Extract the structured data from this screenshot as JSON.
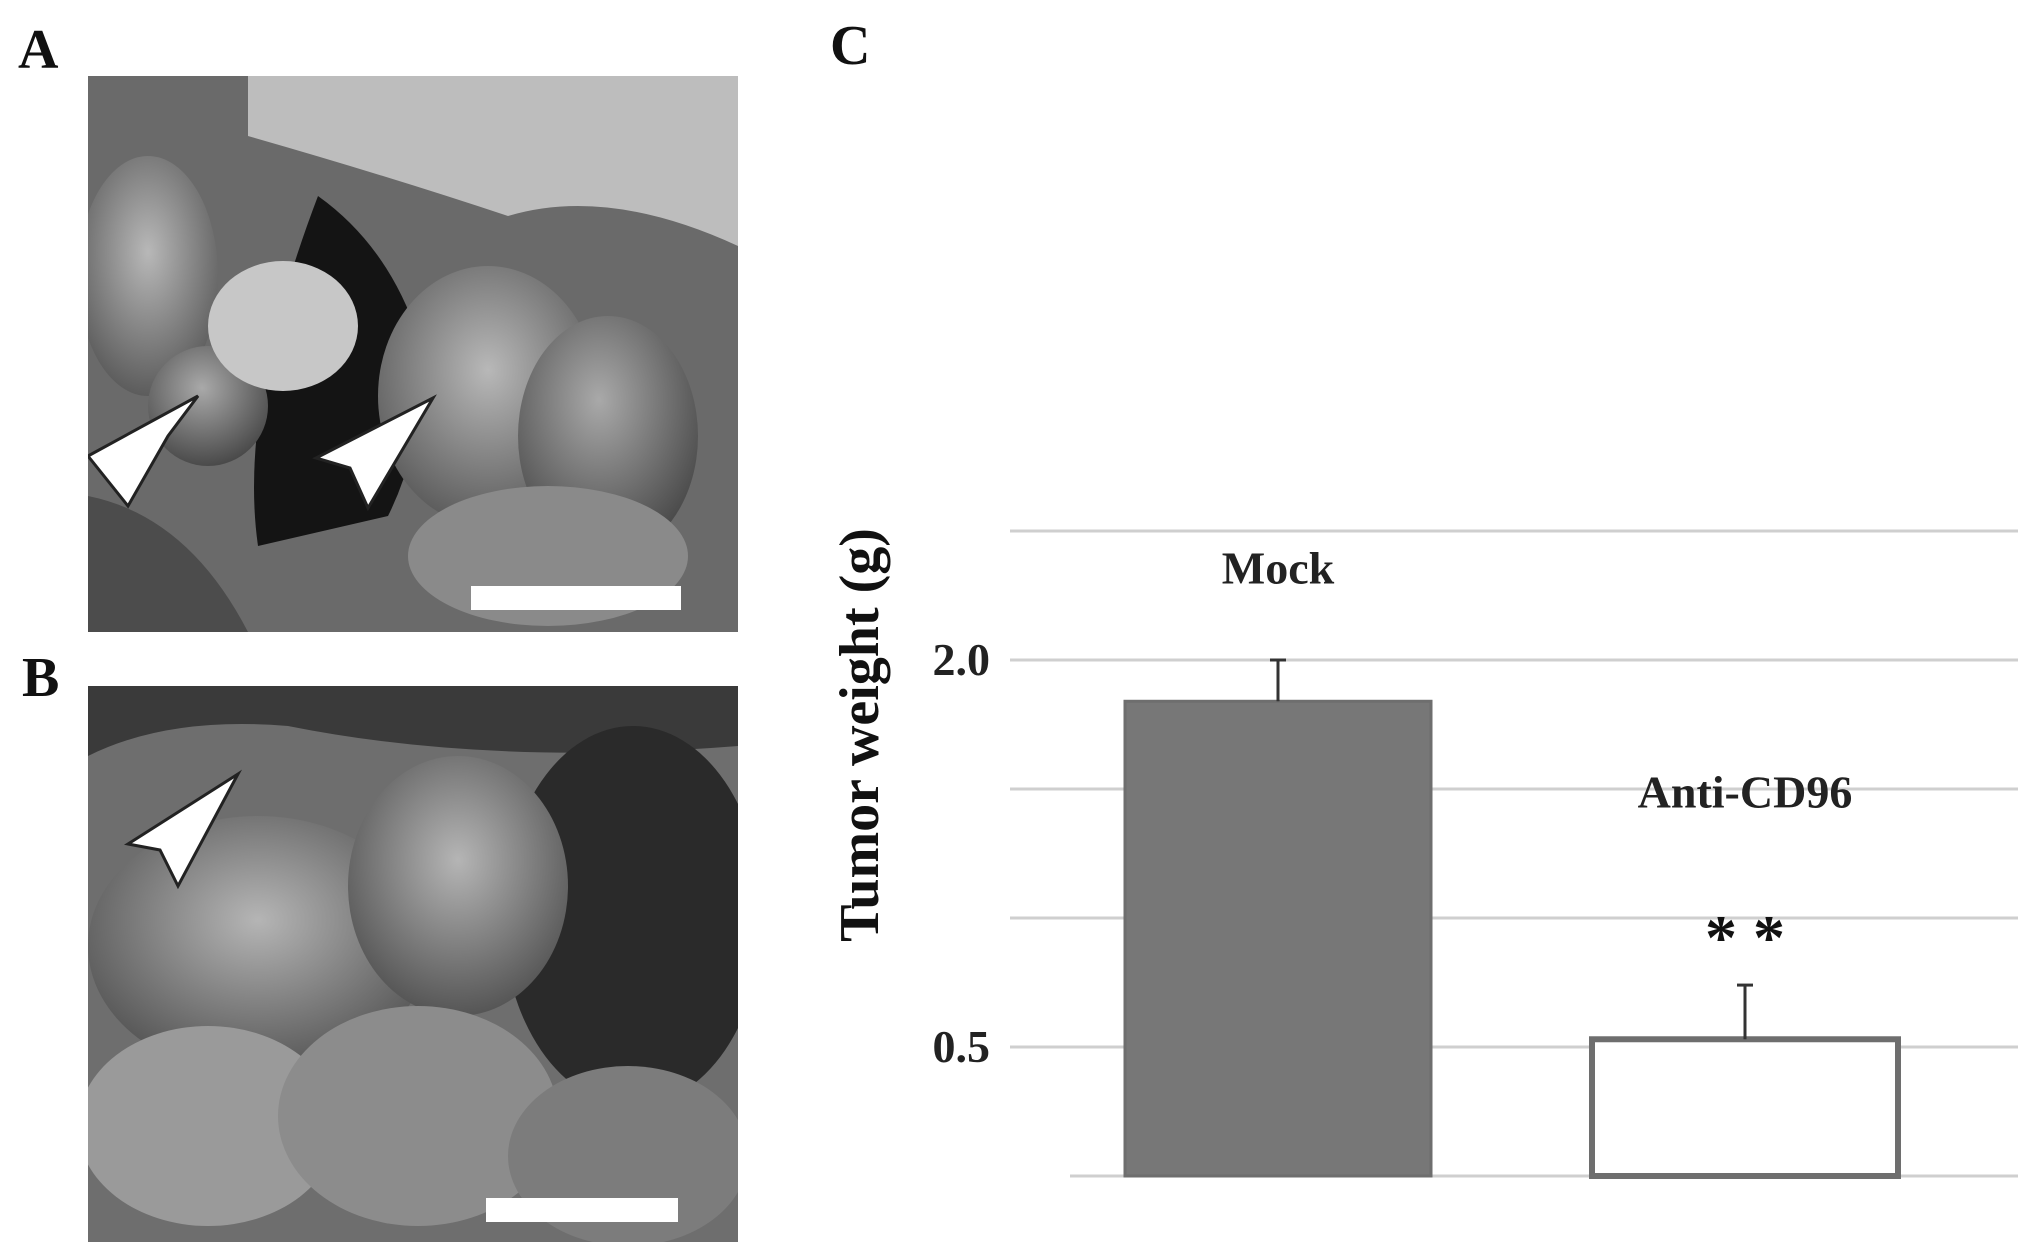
{
  "panels": {
    "a_label": "A",
    "b_label": "B",
    "c_label": "C"
  },
  "photo_a": {
    "arrow_style": "arrowhead",
    "arrow_count": 2,
    "scale_bar": true
  },
  "photo_b": {
    "arrow_style": "arrowhead",
    "arrow_count": 1,
    "scale_bar": true
  },
  "chart_data": {
    "type": "bar",
    "categories": [
      "Mock",
      "Anti-CD96"
    ],
    "values": [
      1.84,
      0.53
    ],
    "errors": [
      0.16,
      0.21
    ],
    "significance": [
      "",
      "**"
    ],
    "ylabel": "Tumor weight (g)",
    "yticks": [
      0.5,
      2.0
    ],
    "ylim": [
      0.0,
      2.5
    ],
    "grid": true,
    "colors": {
      "Mock": "#777777",
      "Anti-CD96": "#ffffff",
      "bar_outline": "#6e6e6e",
      "grid": "#cfcfcf"
    }
  }
}
